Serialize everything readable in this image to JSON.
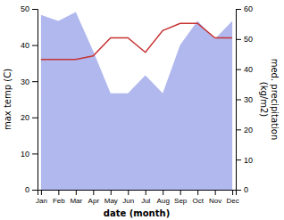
{
  "chart_data": {
    "type": "line",
    "categories": [
      "Jan",
      "Feb",
      "Mar",
      "Apr",
      "May",
      "Jun",
      "Jul",
      "Aug",
      "Sep",
      "Oct",
      "Nov",
      "Dec"
    ],
    "series": [
      {
        "type": "area",
        "axis": "y2",
        "color": "#b0b8ee",
        "values": [
          58,
          56,
          59,
          46,
          32,
          32,
          38,
          32,
          48,
          56,
          50,
          56
        ]
      },
      {
        "type": "line",
        "color": "#c83232",
        "values": [
          36,
          36,
          36,
          37,
          42,
          42,
          38,
          44,
          46,
          46,
          42,
          42
        ]
      }
    ],
    "x_label": "date (month)",
    "y_label": "max temp (C)",
    "y2_label": "med. precipitation\n(kg/m2)",
    "ylim": [
      0,
      50
    ],
    "yticks": [
      0,
      10,
      20,
      30,
      40,
      50
    ],
    "y2lim": [
      0,
      60
    ],
    "y2ticks": [
      0,
      10,
      20,
      30,
      40,
      50,
      60
    ]
  }
}
